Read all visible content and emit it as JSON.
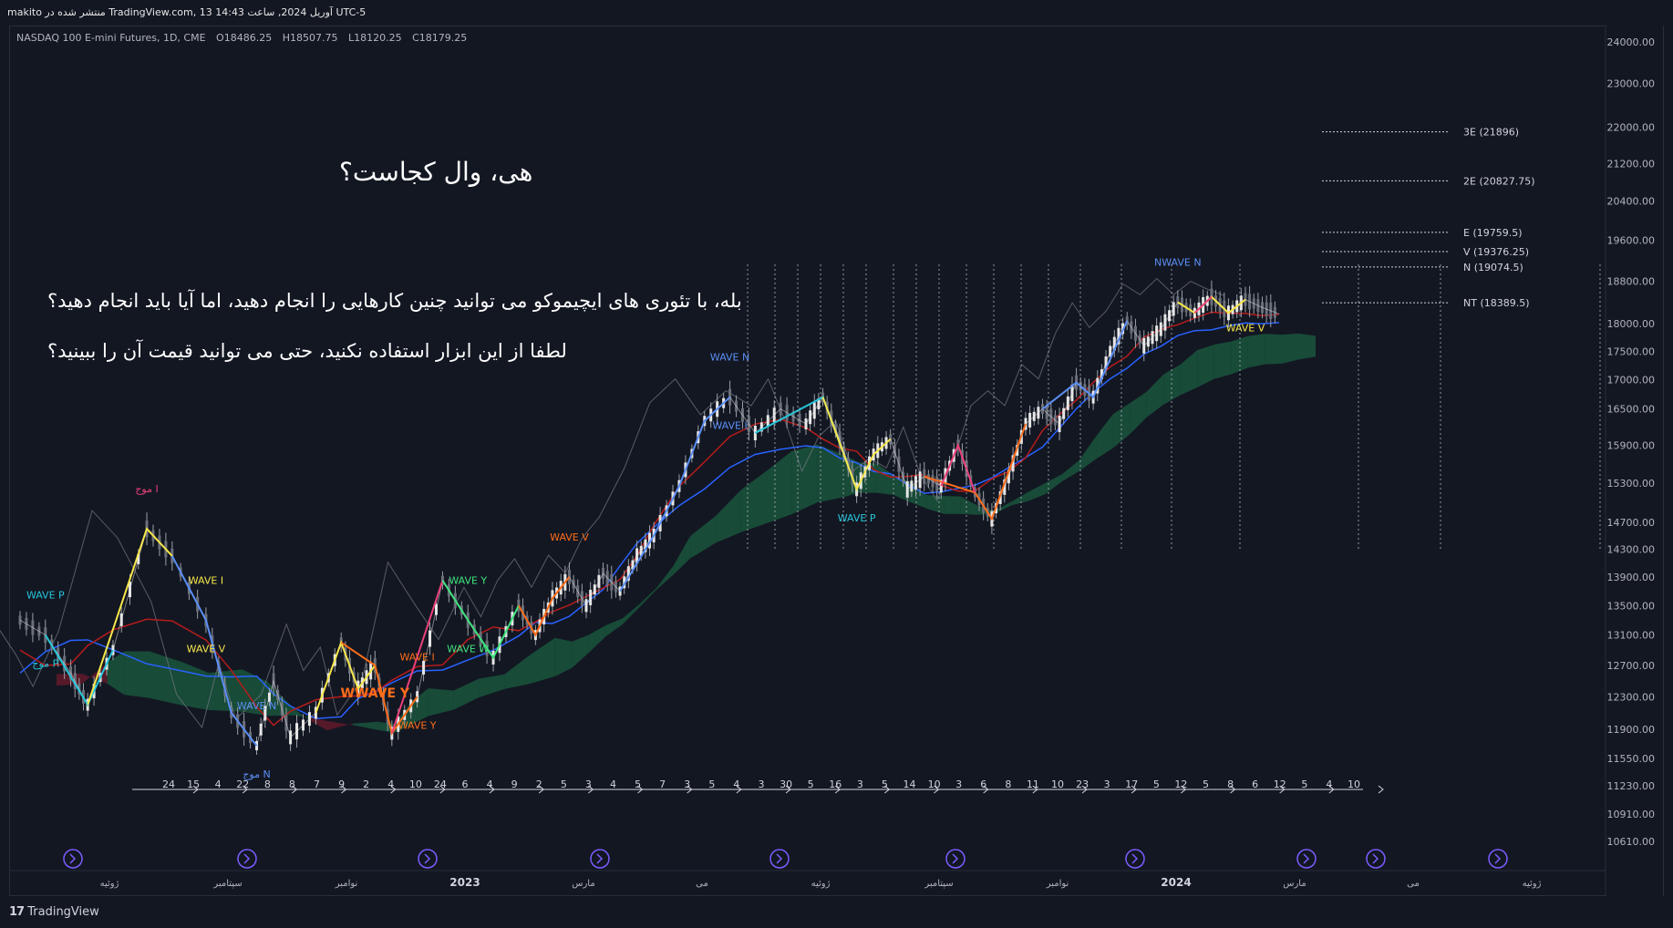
{
  "topbar": {
    "text": "makito منتشر شده در TradingView.com, 13 آوریل 2024, ساعت 14:43 UTC-5"
  },
  "legend": {
    "symbol": "NASDAQ 100 E-mini Futures, 1D, CME",
    "open": "O18486.25",
    "high": "H18507.75",
    "low": "L18120.25",
    "close": "C18179.25"
  },
  "overlay": {
    "title": "هی، وال کجاست؟",
    "line1": "بله، با تئوری های ایچیموکو می توانید چنین کارهایی را انجام دهید، اما آیا باید انجام دهید؟",
    "line2": "لطفا از این ابزار استفاده نکنید، حتی می توانید قیمت آن را ببینید؟"
  },
  "brand": {
    "label": "TradingView"
  },
  "colors": {
    "background": "#131722",
    "price": "#e6e6e6",
    "kijun": "#b71c1c",
    "tenkan": "#2962ff",
    "cloud_bull": "#1b5e40",
    "cloud_bear": "#6d1b2c",
    "wave_yellow": "#f7e74a",
    "wave_blue": "#5b8ff5",
    "wave_cyan": "#26c6da",
    "wave_orange": "#ff6d1a",
    "wave_pink": "#ec407a",
    "wave_green": "#3fe57f",
    "icon_purple": "#7b5cff"
  },
  "chart_data": {
    "type": "line",
    "title": "",
    "xlabel": "",
    "ylabel": "",
    "ylim": [
      10300,
      24300
    ],
    "y_ticks": [
      "24000.00",
      "23000.00",
      "22000.00",
      "21200.00",
      "20400.00",
      "19600.00",
      "18800.00",
      "18000.00",
      "17500.00",
      "17000.00",
      "16500.00",
      "15900.00",
      "15300.00",
      "14700.00",
      "14300.00",
      "13900.00",
      "13500.00",
      "13100.00",
      "12700.00",
      "12300.00",
      "11900.00",
      "11550.00",
      "11230.00",
      "10910.00",
      "10610.00"
    ],
    "x_ticks": [
      {
        "label": "ژوئیه",
        "bold": false
      },
      {
        "label": "سپتامبر",
        "bold": false
      },
      {
        "label": "نوامبر",
        "bold": false
      },
      {
        "label": "2023",
        "bold": true
      },
      {
        "label": "مارس",
        "bold": false
      },
      {
        "label": "می",
        "bold": false
      },
      {
        "label": "ژوئیه",
        "bold": false
      },
      {
        "label": "سپتامبر",
        "bold": false
      },
      {
        "label": "نوامبر",
        "bold": false
      },
      {
        "label": "2024",
        "bold": true
      },
      {
        "label": "مارس",
        "bold": false
      },
      {
        "label": "می",
        "bold": false
      },
      {
        "label": "ژوئیه",
        "bold": false
      }
    ],
    "price_path": [
      [
        0,
        13300
      ],
      [
        3,
        13100
      ],
      [
        6,
        12600
      ],
      [
        8,
        12200
      ],
      [
        11,
        12900
      ],
      [
        15,
        14600
      ],
      [
        18,
        14200
      ],
      [
        22,
        13300
      ],
      [
        25,
        12100
      ],
      [
        28,
        11700
      ],
      [
        30,
        12500
      ],
      [
        32,
        11800
      ],
      [
        35,
        12100
      ],
      [
        38,
        13000
      ],
      [
        40,
        12400
      ],
      [
        42,
        12700
      ],
      [
        44,
        11850
      ],
      [
        47,
        12300
      ],
      [
        50,
        13850
      ],
      [
        53,
        13300
      ],
      [
        56,
        12800
      ],
      [
        59,
        13500
      ],
      [
        61,
        13100
      ],
      [
        63,
        13600
      ],
      [
        65,
        13900
      ],
      [
        67,
        13500
      ],
      [
        69,
        13950
      ],
      [
        71,
        13700
      ],
      [
        73,
        14200
      ],
      [
        75,
        14500
      ],
      [
        78,
        15250
      ],
      [
        81,
        16300
      ],
      [
        84,
        16700
      ],
      [
        87,
        16100
      ],
      [
        90,
        16500
      ],
      [
        93,
        16250
      ],
      [
        95,
        16700
      ],
      [
        97,
        16000
      ],
      [
        99,
        15200
      ],
      [
        101,
        15750
      ],
      [
        103,
        16000
      ],
      [
        105,
        15200
      ],
      [
        107,
        15400
      ],
      [
        109,
        15250
      ],
      [
        111,
        15900
      ],
      [
        113,
        15150
      ],
      [
        115,
        14750
      ],
      [
        117,
        15400
      ],
      [
        119,
        16250
      ],
      [
        121,
        16500
      ],
      [
        123,
        16250
      ],
      [
        125,
        16950
      ],
      [
        127,
        16700
      ],
      [
        129,
        17500
      ],
      [
        131,
        18050
      ],
      [
        133,
        17600
      ],
      [
        135,
        17900
      ],
      [
        137,
        18400
      ],
      [
        139,
        18200
      ],
      [
        141,
        18500
      ],
      [
        143,
        18200
      ],
      [
        145,
        18450
      ],
      [
        147,
        18300
      ],
      [
        149,
        18180
      ]
    ],
    "reference_levels": [
      {
        "label": "3E (21896)",
        "value": 21896
      },
      {
        "label": "2E (20827.75)",
        "value": 20827.75
      },
      {
        "label": "E (19759.5)",
        "value": 19759.5
      },
      {
        "label": "V (19376.25)",
        "value": 19376.25
      },
      {
        "label": "N (19074.5)",
        "value": 19074.5
      },
      {
        "label": "NT (18389.5)",
        "value": 18389.5
      }
    ],
    "wave_labels": [
      {
        "text": "WAVE I",
        "color": "wave_yellow"
      },
      {
        "text": "WAVE V",
        "color": "wave_yellow"
      },
      {
        "text": "WAVE P",
        "color": "wave_cyan"
      },
      {
        "text": "موج P",
        "color": "wave_cyan"
      },
      {
        "text": "موج I",
        "color": "wave_pink"
      },
      {
        "text": "WWAVE Y",
        "color": "wave_orange"
      },
      {
        "text": "WAVE I",
        "color": "wave_orange"
      },
      {
        "text": "WAVE Y",
        "color": "wave_orange"
      },
      {
        "text": "WAVE N",
        "color": "wave_blue"
      },
      {
        "text": "موج N",
        "color": "wave_blue"
      },
      {
        "text": "WAVE Y",
        "color": "wave_green"
      },
      {
        "text": "WAVE W",
        "color": "wave_green"
      },
      {
        "text": "WAVE V",
        "color": "wave_orange"
      },
      {
        "text": "WAVE I",
        "color": "wave_blue"
      },
      {
        "text": "WAVE N",
        "color": "wave_blue"
      },
      {
        "text": "WAVE P",
        "color": "wave_cyan"
      },
      {
        "text": "NWAVE N",
        "color": "wave_blue"
      },
      {
        "text": "WAVE V",
        "color": "wave_yellow"
      }
    ],
    "cycle_counts": [
      "24",
      "15",
      "4",
      "22",
      "8",
      "8",
      "7",
      "9",
      "2",
      "4",
      "10",
      "24",
      "6",
      "4",
      "9",
      "2",
      "5",
      "3",
      "4",
      "5",
      "7",
      "3",
      "5",
      "4",
      "3",
      "30",
      "5",
      "16",
      "3",
      "5",
      "14",
      "10",
      "3",
      "6",
      "8",
      "11",
      "10",
      "23",
      "3",
      "17",
      "5",
      "12",
      "5",
      "8",
      "6",
      "12",
      "5",
      "4",
      "10"
    ],
    "grid": false,
    "legend": "top-left"
  }
}
